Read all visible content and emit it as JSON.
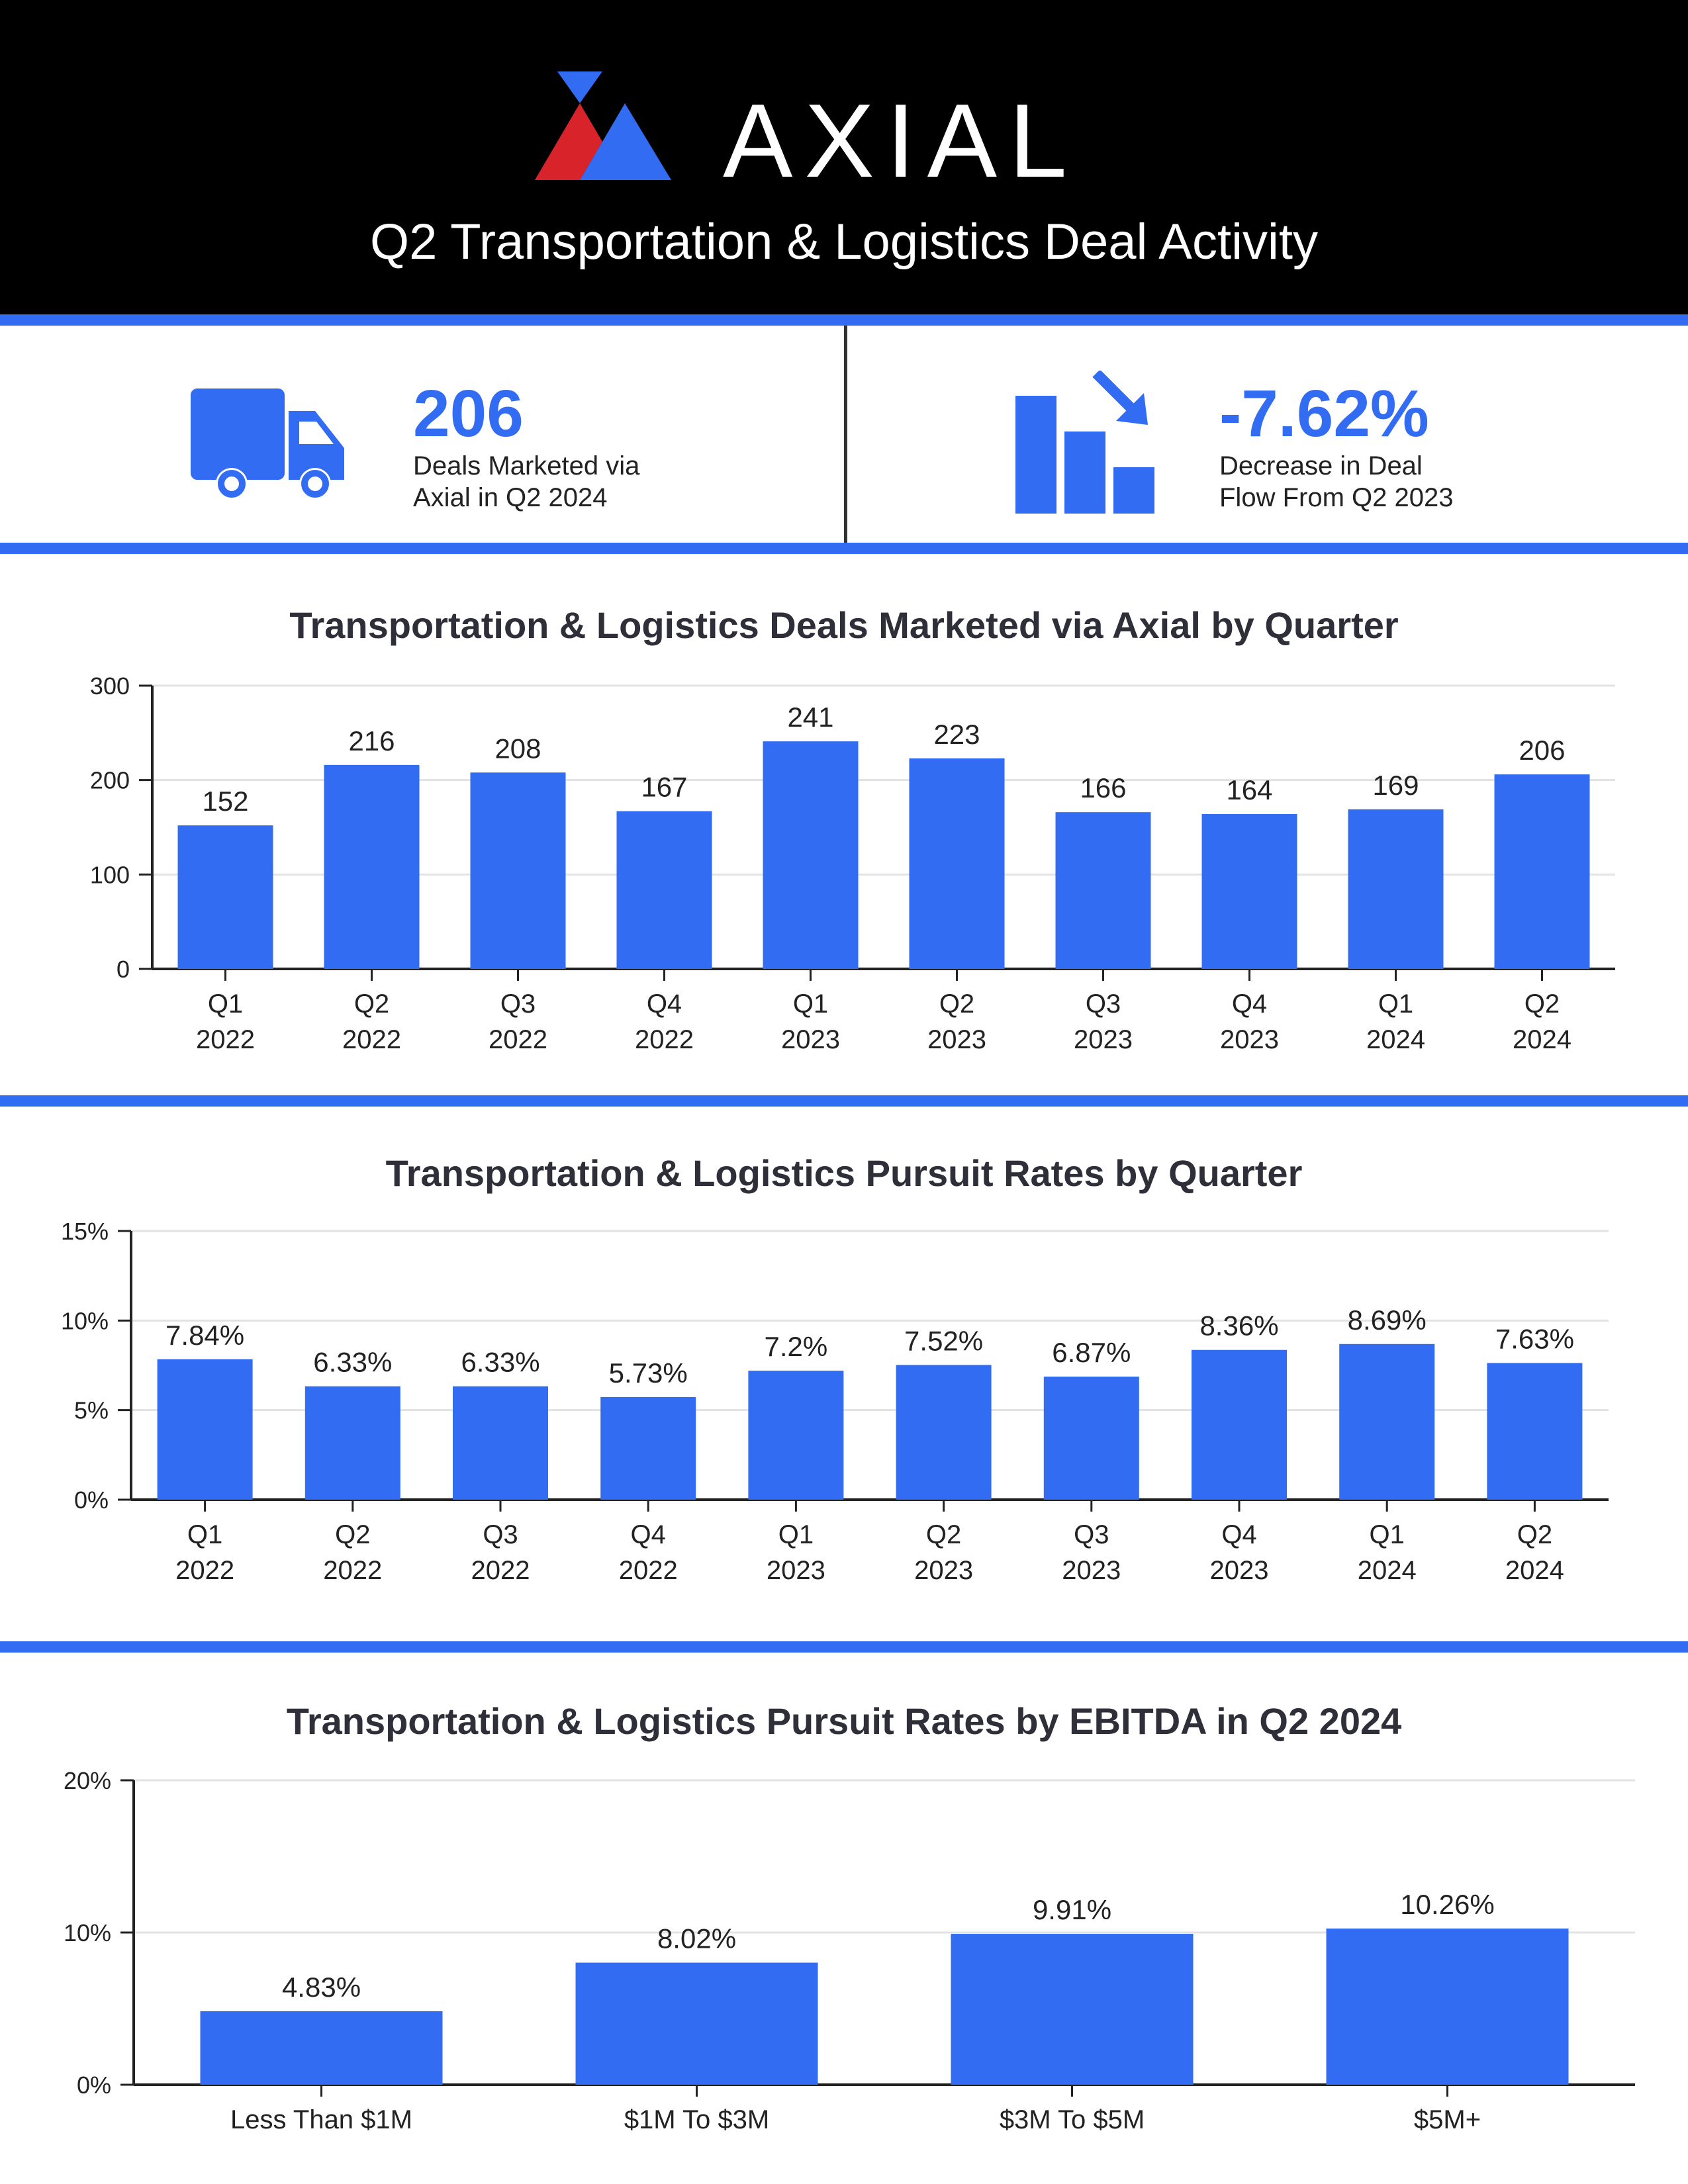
{
  "header": {
    "brand": "AXIAL",
    "title": "Q2 Transportation & Logistics Deal Activity"
  },
  "kpis": [
    {
      "icon": "truck-icon",
      "value": "206",
      "label_line1": "Deals Marketed via",
      "label_line2": "Axial in Q2 2024"
    },
    {
      "icon": "decrease-chart-icon",
      "value": "-7.62%",
      "label_line1": "Decrease in Deal",
      "label_line2": "Flow From Q2 2023"
    }
  ],
  "colors": {
    "accent": "#326cf2",
    "header_bg": "#000000",
    "logo_red": "#d8232a",
    "logo_blue": "#326cf2",
    "grid": "#e3e3e3",
    "axis": "#222222"
  },
  "chart_data": [
    {
      "type": "bar",
      "title": "Transportation & Logistics Deals Marketed via Axial by Quarter",
      "categories": [
        "Q1 2022",
        "Q2 2022",
        "Q3 2022",
        "Q4 2022",
        "Q1 2023",
        "Q2 2023",
        "Q3 2023",
        "Q4 2023",
        "Q1 2024",
        "Q2 2024"
      ],
      "values": [
        152,
        216,
        208,
        167,
        241,
        223,
        166,
        164,
        169,
        206
      ],
      "value_labels": [
        "152",
        "216",
        "208",
        "167",
        "241",
        "223",
        "166",
        "164",
        "169",
        "206"
      ],
      "ylim": [
        0,
        300
      ],
      "yticks": [
        0,
        100,
        200,
        300
      ],
      "ytick_labels": [
        "0",
        "100",
        "200",
        "300"
      ],
      "xlabel": "",
      "ylabel": "",
      "grid": true
    },
    {
      "type": "bar",
      "title": "Transportation & Logistics Pursuit Rates by Quarter",
      "categories": [
        "Q1 2022",
        "Q2 2022",
        "Q3 2022",
        "Q4 2022",
        "Q1 2023",
        "Q2 2023",
        "Q3 2023",
        "Q4 2023",
        "Q1 2024",
        "Q2 2024"
      ],
      "values": [
        7.84,
        6.33,
        6.33,
        5.73,
        7.2,
        7.52,
        6.87,
        8.36,
        8.69,
        7.63
      ],
      "value_labels": [
        "7.84%",
        "6.33%",
        "6.33%",
        "5.73%",
        "7.2%",
        "7.52%",
        "6.87%",
        "8.36%",
        "8.69%",
        "7.63%"
      ],
      "ylim": [
        0,
        15
      ],
      "yticks": [
        0,
        5,
        10,
        15
      ],
      "ytick_labels": [
        "0%",
        "5%",
        "10%",
        "15%"
      ],
      "xlabel": "",
      "ylabel": "",
      "grid": true
    },
    {
      "type": "bar",
      "title": "Transportation & Logistics Pursuit Rates by EBITDA in Q2 2024",
      "categories": [
        "Less Than $1M",
        "$1M To $3M",
        "$3M To $5M",
        "$5M+"
      ],
      "values": [
        4.83,
        8.02,
        9.91,
        10.26
      ],
      "value_labels": [
        "4.83%",
        "8.02%",
        "9.91%",
        "10.26%"
      ],
      "ylim": [
        0,
        20
      ],
      "yticks": [
        0,
        10,
        20
      ],
      "ytick_labels": [
        "0%",
        "10%",
        "20%"
      ],
      "xlabel": "",
      "ylabel": "",
      "grid": true
    }
  ]
}
